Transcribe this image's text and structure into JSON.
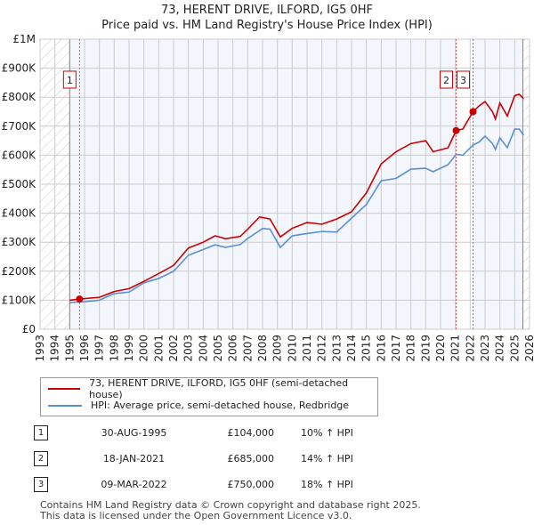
{
  "title_line1": "73, HERENT DRIVE, ILFORD, IG5 0HF",
  "title_line2": "Price paid vs. HM Land Registry's House Price Index (HPI)",
  "chart_data": {
    "type": "line",
    "xlim": [
      1993,
      2026
    ],
    "ylim": [
      0,
      1000000
    ],
    "x_ticks": [
      "1993",
      "1994",
      "1995",
      "1996",
      "1997",
      "1998",
      "1999",
      "2000",
      "2001",
      "2002",
      "2003",
      "2004",
      "2005",
      "2006",
      "2007",
      "2008",
      "2009",
      "2010",
      "2011",
      "2012",
      "2013",
      "2014",
      "2015",
      "2016",
      "2017",
      "2018",
      "2019",
      "2020",
      "2021",
      "2022",
      "2023",
      "2024",
      "2025",
      "2026"
    ],
    "y_ticks": [
      {
        "v": 0,
        "label": "£0"
      },
      {
        "v": 100000,
        "label": "£100K"
      },
      {
        "v": 200000,
        "label": "£200K"
      },
      {
        "v": 300000,
        "label": "£300K"
      },
      {
        "v": 400000,
        "label": "£400K"
      },
      {
        "v": 500000,
        "label": "£500K"
      },
      {
        "v": 600000,
        "label": "£600K"
      },
      {
        "v": 700000,
        "label": "£700K"
      },
      {
        "v": 800000,
        "label": "£800K"
      },
      {
        "v": 900000,
        "label": "£900K"
      },
      {
        "v": 1000000,
        "label": "£1M"
      }
    ],
    "series": [
      {
        "name": "73, HERENT DRIVE, ILFORD, IG5 0HF (semi-detached house)",
        "color": "#cc0000",
        "x": [
          1995,
          1995.66,
          1997,
          1998,
          1999,
          2000,
          2001,
          2002,
          2003,
          2004,
          2004.8,
          2005.5,
          2006.5,
          2007,
          2007.8,
          2008.5,
          2009.2,
          2010,
          2011,
          2012,
          2013,
          2014,
          2015,
          2016,
          2017,
          2018,
          2019,
          2019.5,
          2020.5,
          2021.05,
          2021.5,
          2022.19,
          2022.6,
          2023,
          2023.5,
          2023.7,
          2024,
          2024.5,
          2025,
          2025.3,
          2025.6
        ],
        "y": [
          100000,
          104000,
          110000,
          130000,
          140000,
          165000,
          192000,
          220000,
          280000,
          300000,
          322000,
          312000,
          320000,
          345000,
          387000,
          380000,
          318000,
          348000,
          368000,
          362000,
          380000,
          405000,
          470000,
          570000,
          612000,
          640000,
          650000,
          612000,
          625000,
          685000,
          690000,
          750000,
          770000,
          785000,
          750000,
          725000,
          780000,
          735000,
          805000,
          810000,
          795000
        ]
      },
      {
        "name": "HPI: Average price, semi-detached house, Redbridge",
        "color": "#5b8fd4",
        "x": [
          1995,
          1996,
          1997,
          1998,
          1999,
          2000,
          2001,
          2002,
          2003,
          2004,
          2004.8,
          2005.5,
          2006.5,
          2007,
          2008,
          2008.5,
          2009.2,
          2010,
          2011,
          2012,
          2013,
          2014,
          2015,
          2016,
          2017,
          2018,
          2019,
          2019.5,
          2020.5,
          2021.05,
          2021.5,
          2022.19,
          2022.6,
          2023,
          2023.5,
          2023.7,
          2024,
          2024.5,
          2025,
          2025.3,
          2025.6
        ],
        "y": [
          92000,
          95000,
          100000,
          123000,
          128000,
          160000,
          175000,
          200000,
          255000,
          275000,
          291000,
          282000,
          292000,
          313000,
          347000,
          345000,
          282000,
          322000,
          330000,
          337000,
          335000,
          383000,
          430000,
          512000,
          520000,
          552000,
          555000,
          543000,
          567000,
          603000,
          600000,
          635000,
          645000,
          666000,
          640000,
          620000,
          660000,
          626000,
          690000,
          690000,
          669000
        ]
      }
    ],
    "sales": [
      {
        "n": "1",
        "x": 1995.66,
        "price": 104000
      },
      {
        "n": "2",
        "x": 2021.05,
        "price": 685000
      },
      {
        "n": "3",
        "x": 2022.19,
        "price": 750000
      }
    ]
  },
  "legend": [
    "73, HERENT DRIVE, ILFORD, IG5 0HF (semi-detached house)",
    "HPI: Average price, semi-detached house, Redbridge"
  ],
  "table": [
    {
      "n": "1",
      "date": "30-AUG-1995",
      "price": "£104,000",
      "hpi": "10% ↑ HPI"
    },
    {
      "n": "2",
      "date": "18-JAN-2021",
      "price": "£685,000",
      "hpi": "14% ↑ HPI"
    },
    {
      "n": "3",
      "date": "09-MAR-2022",
      "price": "£750,000",
      "hpi": "18% ↑ HPI"
    }
  ],
  "footer1": "Contains HM Land Registry data © Crown copyright and database right 2025.",
  "footer2": "This data is licensed under the Open Government Licence v3.0."
}
